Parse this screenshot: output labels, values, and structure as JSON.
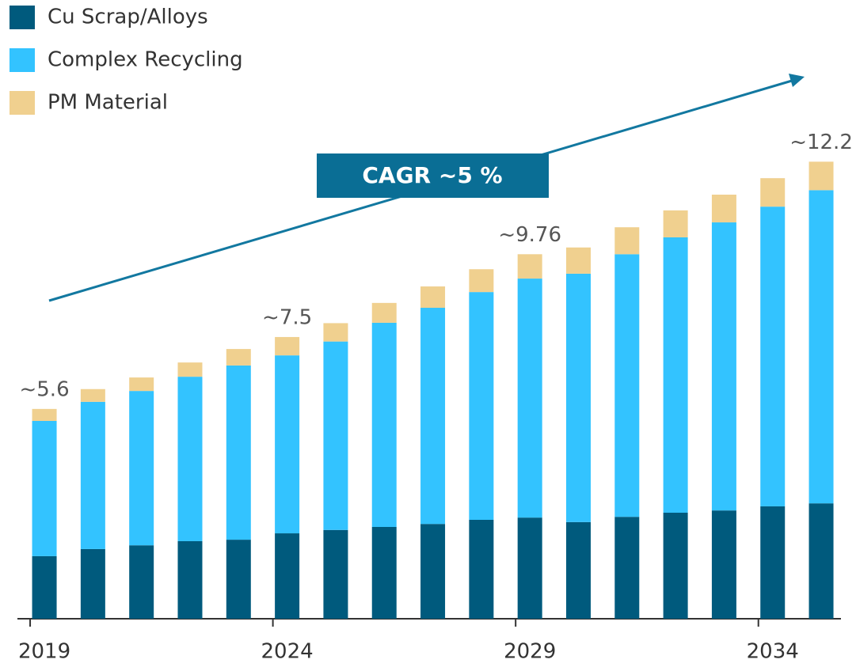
{
  "chart_data": {
    "type": "bar",
    "stacked": true,
    "categories": [
      "2019",
      null,
      null,
      null,
      null,
      "2024",
      null,
      null,
      null,
      null,
      "2029",
      null,
      null,
      null,
      null,
      "2034",
      null
    ],
    "series": [
      {
        "name": "Cu Scrap/Alloys",
        "color": "#005a7d",
        "values": [
          1.67,
          1.86,
          1.96,
          2.07,
          2.11,
          2.28,
          2.37,
          2.45,
          2.53,
          2.64,
          2.7,
          2.58,
          2.72,
          2.83,
          2.89,
          3.0,
          3.08
        ]
      },
      {
        "name": "Complex Recycling",
        "color": "#33c3ff",
        "values": [
          3.61,
          3.93,
          4.12,
          4.39,
          4.65,
          4.75,
          5.03,
          5.45,
          5.77,
          6.08,
          6.38,
          6.63,
          7.01,
          7.35,
          7.69,
          8.0,
          8.36
        ]
      },
      {
        "name": "PM Material",
        "color": "#f0d08f",
        "values": [
          0.32,
          0.34,
          0.36,
          0.38,
          0.44,
          0.49,
          0.49,
          0.53,
          0.57,
          0.61,
          0.65,
          0.7,
          0.72,
          0.72,
          0.74,
          0.76,
          0.76
        ]
      }
    ],
    "total_labels": [
      "~5.6",
      null,
      null,
      null,
      null,
      "~7.5",
      null,
      null,
      null,
      null,
      "~9.76",
      null,
      null,
      null,
      null,
      null,
      "~12.2"
    ],
    "annotation": "CAGR ~5 %",
    "ylim": [
      0,
      13.5
    ],
    "grid": false,
    "legend": "top-left"
  }
}
